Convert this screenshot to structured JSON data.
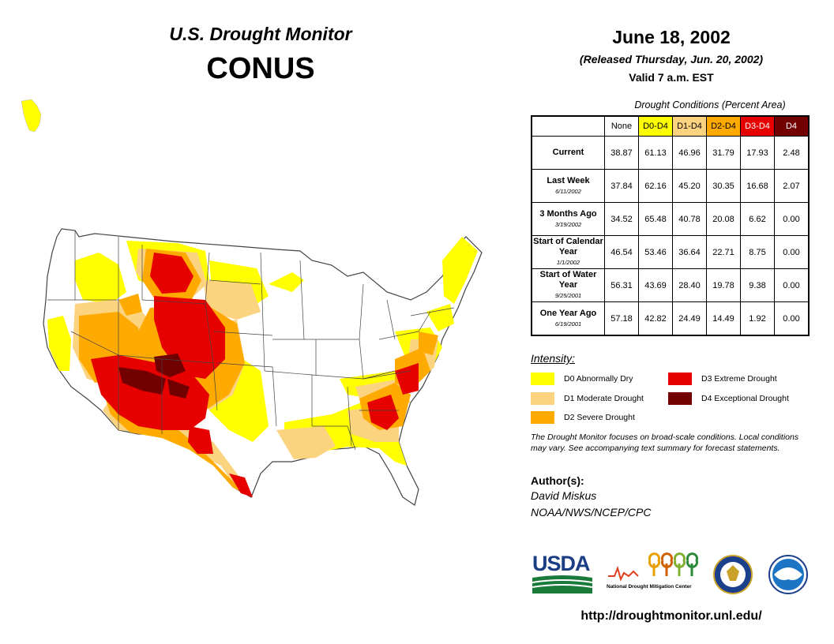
{
  "header": {
    "title": "U.S. Drought Monitor",
    "region": "CONUS",
    "date": "June 18, 2002",
    "released": "(Released Thursday, Jun. 20, 2002)",
    "valid": "Valid 7 a.m. EST"
  },
  "table": {
    "caption": "Drought Conditions (Percent Area)",
    "columns": [
      "None",
      "D0-D4",
      "D1-D4",
      "D2-D4",
      "D3-D4",
      "D4"
    ],
    "rows": [
      {
        "label": "Current",
        "sub": "",
        "values": [
          "38.87",
          "61.13",
          "46.96",
          "31.79",
          "17.93",
          "2.48"
        ]
      },
      {
        "label": "Last Week",
        "sub": "6/11/2002",
        "values": [
          "37.84",
          "62.16",
          "45.20",
          "30.35",
          "16.68",
          "2.07"
        ]
      },
      {
        "label": "3 Months Ago",
        "sub": "3/19/2002",
        "values": [
          "34.52",
          "65.48",
          "40.78",
          "20.08",
          "6.62",
          "0.00"
        ]
      },
      {
        "label": "Start of Calendar Year",
        "sub": "1/1/2002",
        "values": [
          "46.54",
          "53.46",
          "36.64",
          "22.71",
          "8.75",
          "0.00"
        ]
      },
      {
        "label": "Start of Water Year",
        "sub": "9/25/2001",
        "values": [
          "56.31",
          "43.69",
          "28.40",
          "19.78",
          "9.38",
          "0.00"
        ]
      },
      {
        "label": "One Year Ago",
        "sub": "6/19/2001",
        "values": [
          "57.18",
          "42.82",
          "24.49",
          "14.49",
          "1.92",
          "0.00"
        ]
      }
    ]
  },
  "legend": {
    "title": "Intensity:",
    "items": [
      {
        "label": "D0 Abnormally Dry",
        "color": "#ffff00"
      },
      {
        "label": "D1 Moderate Drought",
        "color": "#fcd37f"
      },
      {
        "label": "D2 Severe Drought",
        "color": "#ffaa00"
      },
      {
        "label": "D3 Extreme Drought",
        "color": "#e60000"
      },
      {
        "label": "D4 Exceptional Drought",
        "color": "#730000"
      }
    ]
  },
  "footnote": "The Drought Monitor focuses on broad-scale conditions. Local conditions may vary. See accompanying text summary for forecast statements.",
  "authors": {
    "label": "Author(s):",
    "name": "David Miskus",
    "org": "NOAA/NWS/NCEP/CPC"
  },
  "logos": {
    "usda": "USDA",
    "ndmc": "National Drought Mitigation Center"
  },
  "url": "http://droughtmonitor.unl.edu/"
}
